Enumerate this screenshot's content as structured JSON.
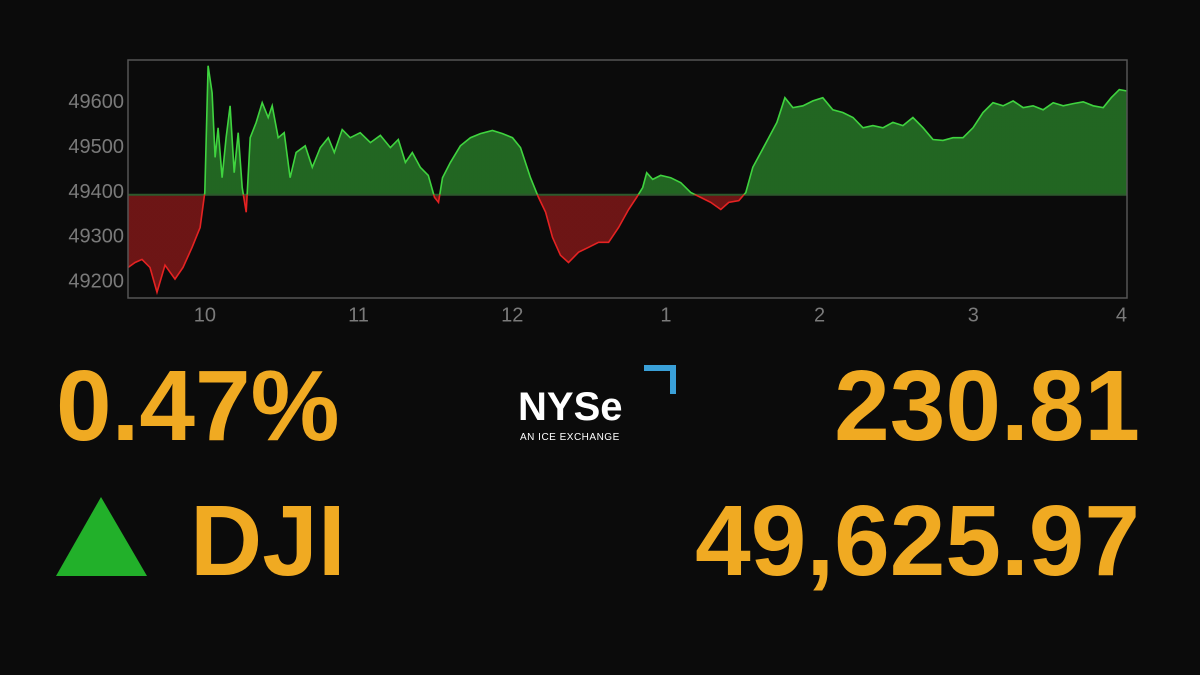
{
  "chart_data": {
    "type": "area",
    "x": [
      9.5,
      9.546,
      9.591,
      9.643,
      9.689,
      9.741,
      9.806,
      9.858,
      9.917,
      9.969,
      10.0,
      10.021,
      10.047,
      10.067,
      10.086,
      10.112,
      10.138,
      10.164,
      10.191,
      10.217,
      10.243,
      10.269,
      10.295,
      10.334,
      10.373,
      10.412,
      10.438,
      10.477,
      10.516,
      10.555,
      10.594,
      10.653,
      10.699,
      10.751,
      10.803,
      10.842,
      10.894,
      10.946,
      11.011,
      11.077,
      11.142,
      11.207,
      11.259,
      11.305,
      11.35,
      11.402,
      11.454,
      11.494,
      11.52,
      11.546,
      11.598,
      11.663,
      11.728,
      11.793,
      11.871,
      11.937,
      12.002,
      12.054,
      12.119,
      12.171,
      12.217,
      12.262,
      12.314,
      12.366,
      12.432,
      12.497,
      12.562,
      12.627,
      12.692,
      12.757,
      12.809,
      12.849,
      12.875,
      12.914,
      12.966,
      13.031,
      13.096,
      13.161,
      13.226,
      13.292,
      13.357,
      13.409,
      13.474,
      13.52,
      13.565,
      13.617,
      13.669,
      13.722,
      13.774,
      13.826,
      13.891,
      13.956,
      14.021,
      14.086,
      14.151,
      14.217,
      14.282,
      14.347,
      14.412,
      14.477,
      14.542,
      14.607,
      14.673,
      14.738,
      14.803,
      14.868,
      14.933,
      14.998,
      15.063,
      15.128,
      15.194,
      15.259,
      15.324,
      15.389,
      15.454,
      15.52,
      15.585,
      15.65,
      15.715,
      15.78,
      15.845,
      15.897,
      15.95,
      16.0
    ],
    "values": [
      49233,
      49244,
      49251,
      49233,
      49178,
      49238,
      49207,
      49233,
      49278,
      49322,
      49400,
      49682,
      49622,
      49478,
      49544,
      49433,
      49522,
      49593,
      49444,
      49533,
      49411,
      49356,
      49522,
      49556,
      49600,
      49567,
      49593,
      49522,
      49533,
      49433,
      49489,
      49504,
      49456,
      49500,
      49522,
      49489,
      49540,
      49522,
      49533,
      49511,
      49527,
      49500,
      49518,
      49467,
      49489,
      49456,
      49438,
      49389,
      49378,
      49433,
      49467,
      49504,
      49522,
      49531,
      49538,
      49531,
      49522,
      49500,
      49433,
      49389,
      49356,
      49300,
      49260,
      49244,
      49267,
      49278,
      49289,
      49289,
      49322,
      49362,
      49389,
      49411,
      49444,
      49429,
      49438,
      49433,
      49422,
      49400,
      49389,
      49378,
      49362,
      49378,
      49382,
      49400,
      49456,
      49489,
      49522,
      49556,
      49611,
      49589,
      49593,
      49604,
      49611,
      49584,
      49578,
      49567,
      49544,
      49549,
      49544,
      49556,
      49549,
      49567,
      49544,
      49518,
      49516,
      49522,
      49522,
      49544,
      49578,
      49600,
      49593,
      49604,
      49589,
      49593,
      49584,
      49600,
      49593,
      49598,
      49602,
      49593,
      49589,
      49611,
      49629,
      49626
    ],
    "baseline": 49395,
    "up_color": "#3fd43f",
    "down_color": "#e52222",
    "xlim": [
      9.5,
      16
    ],
    "xticks": [
      10,
      11,
      12,
      {
        "value": 13,
        "label": "1"
      },
      {
        "value": 14,
        "label": "2"
      },
      {
        "value": 15,
        "label": "3"
      },
      {
        "value": 16,
        "label": "4"
      }
    ],
    "ylim": [
      49165,
      49695
    ],
    "yticks": [
      49200,
      49300,
      49400,
      49500,
      49600
    ]
  },
  "quote": {
    "change_percent": "0.47%",
    "change": "230.81",
    "symbol": "DJI",
    "price": "49,625.97",
    "color": "#f0aa22"
  },
  "logo": {
    "name": "NYSe",
    "tagline": "AN ICE EXCHANGE"
  }
}
